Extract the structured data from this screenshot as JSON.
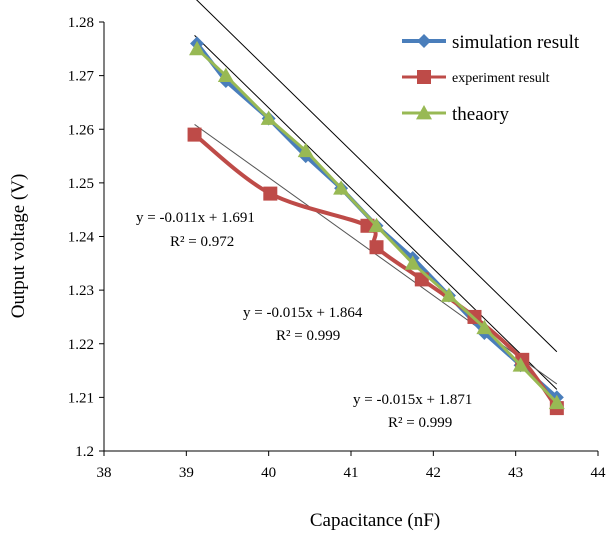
{
  "chart_data": {
    "type": "line",
    "xlabel": "Capacitance (nF)",
    "ylabel": "Output voltage (V)",
    "xlim": [
      38,
      44
    ],
    "ylim": [
      1.2,
      1.28
    ],
    "x_ticks": [
      "38",
      "39",
      "40",
      "41",
      "42",
      "43",
      "44"
    ],
    "y_ticks": [
      "1.2",
      "1.21",
      "1.22",
      "1.23",
      "1.24",
      "1.25",
      "1.26",
      "1.27",
      "1.28"
    ],
    "grid": false,
    "legend_position": "top-right",
    "series": [
      {
        "name": "simulation result",
        "color": "#4a7ebb",
        "marker": "diamond",
        "x": [
          39.13,
          39.48,
          40.0,
          40.45,
          40.88,
          41.31,
          41.75,
          42.19,
          42.62,
          43.06,
          43.5
        ],
        "y": [
          1.276,
          1.269,
          1.262,
          1.255,
          1.249,
          1.242,
          1.236,
          1.229,
          1.222,
          1.216,
          1.21
        ]
      },
      {
        "name": "experiment result",
        "color": "#be4b48",
        "marker": "square",
        "x": [
          39.1,
          40.02,
          41.2,
          41.31,
          41.86,
          42.5,
          43.08,
          43.5
        ],
        "y": [
          1.259,
          1.248,
          1.242,
          1.238,
          1.232,
          1.225,
          1.217,
          1.208
        ]
      },
      {
        "name": "theaory",
        "color": "#98b954",
        "marker": "triangle",
        "x": [
          39.13,
          39.48,
          40.0,
          40.45,
          40.88,
          41.31,
          41.75,
          42.19,
          42.62,
          43.06,
          43.5
        ],
        "y": [
          1.275,
          1.27,
          1.262,
          1.256,
          1.249,
          1.242,
          1.235,
          1.229,
          1.223,
          1.216,
          1.209
        ]
      }
    ],
    "trendlines": [
      {
        "slope": -0.015,
        "intercept": 1.871,
        "color": "#000000",
        "x": [
          39.1,
          43.5
        ]
      },
      {
        "slope": -0.015,
        "intercept": 1.864,
        "color": "#000000",
        "x": [
          39.1,
          43.5
        ]
      },
      {
        "slope": -0.011,
        "intercept": 1.691,
        "color": "#555555",
        "x": [
          39.1,
          43.5
        ]
      }
    ],
    "annotations": [
      {
        "equation": "y = -0.011x + 1.691",
        "r2": "R² = 0.972"
      },
      {
        "equation": "y = -0.015x + 1.864",
        "r2": "R² = 0.999"
      },
      {
        "equation": "y = -0.015x + 1.871",
        "r2": "R² = 0.999"
      }
    ]
  }
}
